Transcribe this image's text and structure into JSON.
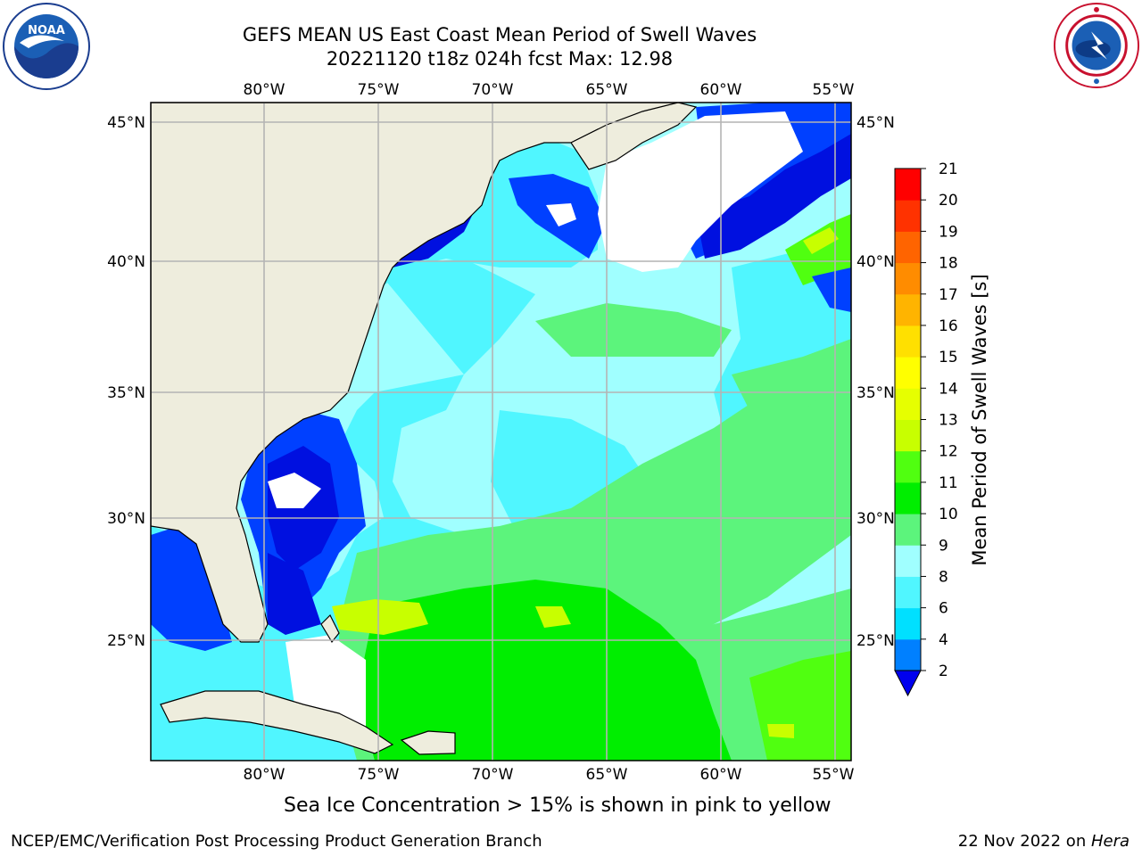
{
  "header": {
    "title_line1": "GEFS MEAN US East Coast Mean Period of Swell Waves",
    "title_line2": "20221120 t18z 024h fcst   Max: 12.98"
  },
  "logos": {
    "left": {
      "icon": "noaa-logo-icon",
      "text": "NOAA",
      "ring_text": "NATIONAL OCEANIC AND ATMOSPHERIC ADMINISTRATION · U.S. DEPARTMENT OF COMMERCE"
    },
    "right": {
      "icon": "nws-logo-icon",
      "ring_text": "NATIONAL WEATHER SERVICE"
    }
  },
  "map": {
    "projection": "lat-lon",
    "lon_range": [
      -85,
      -55
    ],
    "lat_range": [
      20.5,
      45.7
    ],
    "lon_ticks": [
      "80°W",
      "75°W",
      "70°W",
      "65°W",
      "60°W",
      "55°W"
    ],
    "lat_ticks_left": [
      "45°N",
      "40°N",
      "35°N",
      "30°N",
      "25°N"
    ],
    "lat_ticks_right": [
      "45°N",
      "40°N",
      "35°N",
      "30°N",
      "25°N"
    ],
    "land_color": "#eeeddd",
    "grid_color": "#b4b4b4",
    "fill_regions": [
      {
        "name": "open-ocean-8-9s",
        "color": "#a0ffff"
      },
      {
        "name": "shelf-6-8s",
        "color": "#50f6ff"
      },
      {
        "name": "green-9-10s",
        "color": "#5cf47c"
      },
      {
        "name": "green-10-11s",
        "color": "#00ee00"
      },
      {
        "name": "green-11-12s",
        "color": "#50ff10"
      },
      {
        "name": "yellow-green-12-13s",
        "color": "#c8ff00"
      },
      {
        "name": "blue-2-4s",
        "color": "#0040ff"
      },
      {
        "name": "dark-blue-below-2s",
        "color": "#0010e0"
      },
      {
        "name": "undefined-white",
        "color": "#ffffff"
      }
    ]
  },
  "colorbar": {
    "label": "Mean Period of Swell Waves [s]",
    "ticks": [
      "2",
      "4",
      "6",
      "8",
      "9",
      "10",
      "11",
      "12",
      "13",
      "14",
      "15",
      "16",
      "17",
      "18",
      "19",
      "20",
      "21"
    ],
    "extend": "min",
    "under_color": "#0000ee",
    "colors": [
      "#0080ff",
      "#00e0ff",
      "#50f6ff",
      "#a0ffff",
      "#5cf47c",
      "#00ee00",
      "#50ff10",
      "#c8ff00",
      "#e6ff00",
      "#ffff00",
      "#ffe000",
      "#ffb400",
      "#ff8c00",
      "#ff6400",
      "#ff3200",
      "#ff0000"
    ]
  },
  "note": "Sea Ice Concentration > 15% is shown in pink to yellow",
  "footer": {
    "left": "NCEP/EMC/Verification Post Processing Product Generation Branch",
    "date": "22 Nov 2022 on ",
    "machine": "Hera"
  }
}
